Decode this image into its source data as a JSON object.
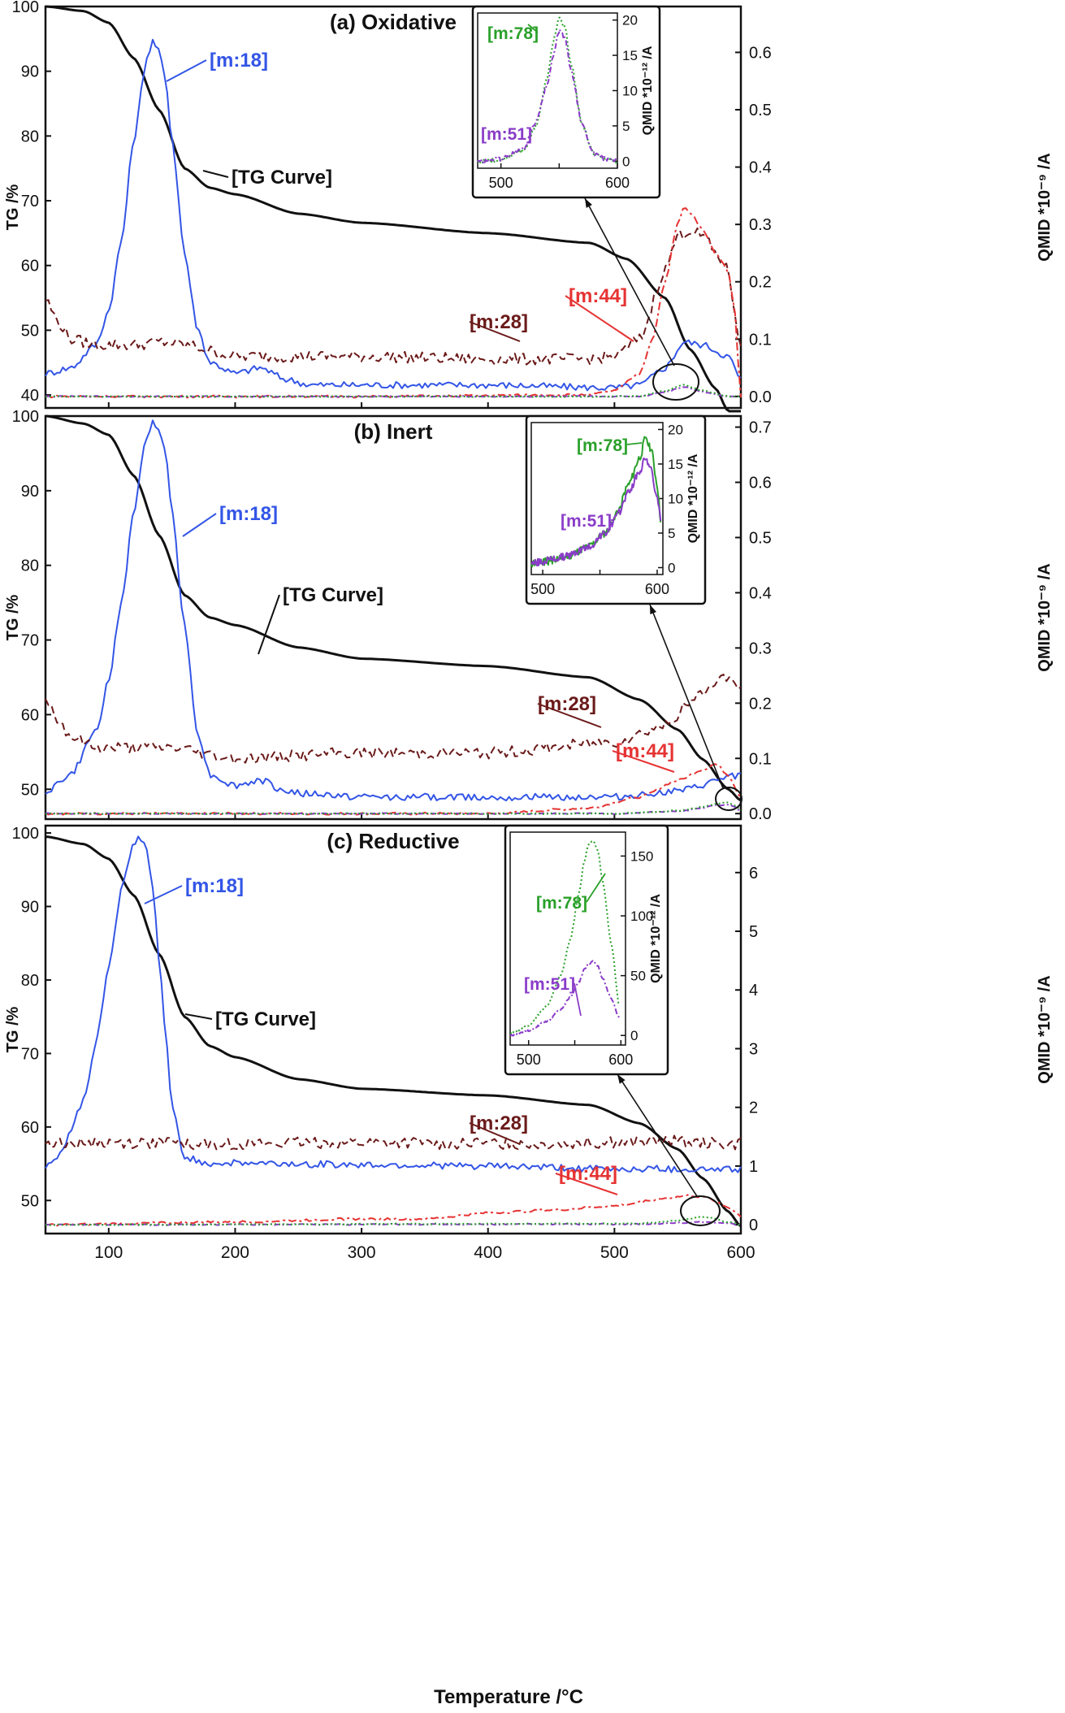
{
  "figure": {
    "xlabel": "Temperature /°C",
    "x_ticks": [
      100,
      200,
      300,
      400,
      500,
      600
    ],
    "xlim": [
      50,
      600
    ]
  },
  "chart_data": [
    {
      "type": "line",
      "title": "(a) Oxidative",
      "xlim": [
        50,
        600
      ],
      "ylabel_left": "TG /%",
      "ylabel_right": "QMID *10⁻⁹ /A",
      "ylim_left": [
        38,
        100
      ],
      "ylim_right": [
        -0.02,
        0.68
      ],
      "left_ticks": [
        40,
        50,
        60,
        70,
        80,
        90,
        100
      ],
      "right_ticks": [
        "0.0",
        "0.1",
        "0.2",
        "0.3",
        "0.4",
        "0.5",
        "0.6"
      ],
      "labels": [
        "[m:18]",
        "[TG Curve]",
        "[m:28]",
        "[m:44]"
      ],
      "colors": {
        "tg": "#111111",
        "m18": "#3355e6",
        "m28": "#6b1a1a",
        "m44": "#e63333",
        "m51": "#8a3cc8",
        "m78": "#2aa02a"
      },
      "series": [
        {
          "name": "[TG Curve]",
          "axis": "left",
          "x": [
            50,
            80,
            100,
            120,
            140,
            160,
            180,
            200,
            250,
            300,
            400,
            480,
            510,
            540,
            560,
            580,
            590,
            600
          ],
          "values": [
            100,
            99.3,
            97.5,
            92,
            84,
            75,
            72,
            71,
            68,
            66.6,
            65,
            63.5,
            61,
            55,
            47,
            41,
            37.5,
            37.5
          ]
        },
        {
          "name": "[m:18]",
          "axis": "right",
          "x": [
            50,
            70,
            90,
            100,
            110,
            120,
            130,
            135,
            140,
            145,
            150,
            160,
            170,
            180,
            200,
            220,
            240,
            260,
            300,
            400,
            500,
            520,
            540,
            555,
            570,
            590,
            600
          ],
          "values": [
            0.04,
            0.05,
            0.09,
            0.15,
            0.27,
            0.45,
            0.59,
            0.62,
            0.6,
            0.55,
            0.45,
            0.25,
            0.12,
            0.06,
            0.04,
            0.05,
            0.03,
            0.02,
            0.02,
            0.02,
            0.015,
            0.02,
            0.05,
            0.095,
            0.09,
            0.07,
            0.03
          ]
        },
        {
          "name": "[m:28]",
          "axis": "right",
          "x": [
            50,
            60,
            70,
            90,
            120,
            140,
            160,
            200,
            300,
            400,
            480,
            500,
            520,
            540,
            550,
            560,
            570,
            580,
            590,
            595,
            600
          ],
          "values": [
            0.17,
            0.13,
            0.1,
            0.09,
            0.09,
            0.095,
            0.09,
            0.07,
            0.07,
            0.065,
            0.065,
            0.07,
            0.1,
            0.22,
            0.28,
            0.29,
            0.28,
            0.25,
            0.22,
            0.15,
            0.08
          ]
        },
        {
          "name": "[m:44]",
          "axis": "right",
          "x": [
            50,
            300,
            480,
            500,
            520,
            530,
            540,
            550,
            555,
            560,
            570,
            580,
            590,
            595,
            600
          ],
          "values": [
            0.0,
            0.0,
            0.003,
            0.01,
            0.04,
            0.1,
            0.2,
            0.3,
            0.33,
            0.32,
            0.29,
            0.25,
            0.22,
            0.15,
            0.0
          ]
        },
        {
          "name": "[m:51]",
          "axis": "right",
          "x": [
            50,
            520,
            540,
            555,
            570,
            590,
            600
          ],
          "values": [
            0.0,
            0.0,
            0.008,
            0.017,
            0.008,
            0.0,
            0.0
          ]
        },
        {
          "name": "[m:78]",
          "axis": "right",
          "x": [
            50,
            520,
            540,
            555,
            570,
            590,
            600
          ],
          "values": [
            0.0,
            0.0,
            0.01,
            0.02,
            0.01,
            0.0,
            0.0
          ]
        }
      ],
      "inset": {
        "ylabel": "QMID *10⁻¹² /A",
        "xlim": [
          480,
          600
        ],
        "ylim": [
          -1,
          21
        ],
        "x_ticks": [
          500,
          550,
          600
        ],
        "x_tick_labels": [
          "500",
          "",
          "600"
        ],
        "y_ticks": [
          0,
          5,
          10,
          15,
          20
        ],
        "labels": [
          "[m:78]",
          "[m:51]"
        ],
        "series": [
          {
            "name": "[m:78]",
            "x": [
              480,
              500,
              520,
              530,
              540,
              545,
              550,
              555,
              560,
              570,
              580,
              590,
              600
            ],
            "values": [
              0,
              0.2,
              1.5,
              5,
              12,
              17,
              20.5,
              19,
              14,
              5,
              1,
              0.3,
              0
            ]
          },
          {
            "name": "[m:51]",
            "x": [
              480,
              500,
              520,
              530,
              540,
              545,
              550,
              555,
              560,
              570,
              580,
              590,
              600
            ],
            "values": [
              0,
              0.3,
              1.8,
              5.5,
              11,
              15,
              18.5,
              17.5,
              13,
              5,
              1,
              0.3,
              0
            ]
          }
        ]
      }
    },
    {
      "type": "line",
      "title": "(b) Inert",
      "xlim": [
        50,
        600
      ],
      "ylabel_left": "TG /%",
      "ylabel_right": "QMID *10⁻⁹ /A",
      "ylim_left": [
        46,
        100
      ],
      "ylim_right": [
        -0.01,
        0.72
      ],
      "left_ticks": [
        50,
        60,
        70,
        80,
        90,
        100
      ],
      "right_ticks": [
        "0.0",
        "0.1",
        "0.2",
        "0.3",
        "0.4",
        "0.5",
        "0.6",
        "0.7"
      ],
      "labels": [
        "[m:18]",
        "[TG Curve]",
        "[m:28]",
        "[m:44]"
      ],
      "colors": {
        "tg": "#111111",
        "m18": "#3355e6",
        "m28": "#6b1a1a",
        "m44": "#e63333",
        "m51": "#8a3cc8",
        "m78": "#2aa02a"
      },
      "series": [
        {
          "name": "[TG Curve]",
          "axis": "left",
          "x": [
            50,
            80,
            100,
            120,
            140,
            160,
            180,
            200,
            250,
            300,
            400,
            480,
            520,
            550,
            570,
            590,
            600
          ],
          "values": [
            100,
            99,
            97.5,
            92,
            84,
            76,
            73,
            72,
            69,
            67.5,
            66.5,
            65,
            62,
            58,
            54,
            50,
            48.5
          ]
        },
        {
          "name": "[m:18]",
          "axis": "right",
          "x": [
            50,
            70,
            90,
            100,
            110,
            120,
            130,
            135,
            140,
            145,
            150,
            160,
            170,
            180,
            200,
            220,
            240,
            260,
            300,
            400,
            500,
            550,
            600
          ],
          "values": [
            0.04,
            0.07,
            0.15,
            0.24,
            0.38,
            0.55,
            0.68,
            0.71,
            0.7,
            0.65,
            0.55,
            0.34,
            0.15,
            0.07,
            0.05,
            0.06,
            0.04,
            0.035,
            0.03,
            0.03,
            0.03,
            0.04,
            0.07
          ]
        },
        {
          "name": "[m:28]",
          "axis": "right",
          "x": [
            50,
            60,
            70,
            90,
            120,
            150,
            200,
            300,
            400,
            500,
            540,
            560,
            570,
            580,
            590,
            600
          ],
          "values": [
            0.21,
            0.17,
            0.14,
            0.12,
            0.12,
            0.12,
            0.1,
            0.11,
            0.11,
            0.13,
            0.16,
            0.2,
            0.22,
            0.24,
            0.25,
            0.22
          ]
        },
        {
          "name": "[m:44]",
          "axis": "right",
          "x": [
            50,
            400,
            480,
            520,
            550,
            570,
            580,
            590,
            600
          ],
          "values": [
            0.0,
            0.0,
            0.01,
            0.03,
            0.06,
            0.08,
            0.09,
            0.07,
            0.03
          ]
        },
        {
          "name": "[m:51]",
          "axis": "right",
          "x": [
            50,
            500,
            550,
            570,
            580,
            590,
            595,
            600
          ],
          "values": [
            0.0,
            0.0,
            0.004,
            0.01,
            0.015,
            0.016,
            0.012,
            0.005
          ]
        },
        {
          "name": "[m:78]",
          "axis": "right",
          "x": [
            50,
            500,
            550,
            570,
            580,
            590,
            595,
            600
          ],
          "values": [
            0.0,
            0.0,
            0.005,
            0.012,
            0.018,
            0.02,
            0.015,
            0.006
          ]
        }
      ],
      "inset": {
        "ylabel": "QMID *10⁻¹² /A",
        "xlim": [
          490,
          605
        ],
        "ylim": [
          -1,
          21
        ],
        "x_ticks": [
          500,
          550,
          600
        ],
        "x_tick_labels": [
          "500",
          "",
          "600"
        ],
        "y_ticks": [
          0,
          5,
          10,
          15,
          20
        ],
        "labels": [
          "[m:78]",
          "[m:51]"
        ],
        "series": [
          {
            "name": "[m:78]",
            "x": [
              490,
              500,
              520,
              540,
              555,
              565,
              575,
              585,
              590,
              595,
              600,
              603
            ],
            "values": [
              0.5,
              0.8,
              1.5,
              3,
              5,
              8,
              12,
              16,
              19,
              17,
              12,
              7
            ]
          },
          {
            "name": "[m:51]",
            "x": [
              490,
              500,
              520,
              540,
              555,
              565,
              575,
              585,
              590,
              595,
              600,
              603
            ],
            "values": [
              0.6,
              0.9,
              1.6,
              3,
              5,
              7.5,
              11,
              14,
              16,
              14,
              10,
              7
            ]
          }
        ]
      }
    },
    {
      "type": "line",
      "title": "(c) Reductive",
      "xlim": [
        50,
        600
      ],
      "ylabel_left": "TG /%",
      "ylabel_right": "QMID *10⁻⁹ /A",
      "ylim_left": [
        45.5,
        101
      ],
      "ylim_right": [
        -0.15,
        6.8
      ],
      "left_ticks": [
        50,
        60,
        70,
        80,
        90,
        100
      ],
      "right_ticks": [
        "0",
        "1",
        "2",
        "3",
        "4",
        "5",
        "6"
      ],
      "labels": [
        "[m:18]",
        "[TG Curve]",
        "[m:28]",
        "[m:44]"
      ],
      "colors": {
        "tg": "#111111",
        "m18": "#3355e6",
        "m28": "#6b1a1a",
        "m44": "#e63333",
        "m51": "#8a3cc8",
        "m78": "#2aa02a"
      },
      "series": [
        {
          "name": "[TG Curve]",
          "axis": "left",
          "x": [
            50,
            80,
            100,
            120,
            140,
            160,
            180,
            200,
            250,
            300,
            400,
            480,
            520,
            550,
            570,
            590,
            600
          ],
          "values": [
            99.5,
            98.5,
            96.5,
            91.5,
            83.5,
            75,
            71,
            69.5,
            66.5,
            65.2,
            64.3,
            63,
            60.5,
            57,
            53,
            48.5,
            46.5
          ]
        },
        {
          "name": "[m:18]",
          "axis": "right",
          "x": [
            50,
            60,
            80,
            90,
            100,
            110,
            120,
            125,
            130,
            135,
            140,
            145,
            150,
            160,
            180,
            200,
            300,
            400,
            500,
            600
          ],
          "values": [
            1.0,
            1.15,
            2.1,
            3.1,
            4.4,
            5.7,
            6.5,
            6.6,
            6.4,
            5.7,
            4.5,
            3.2,
            2.0,
            1.15,
            1.05,
            1.05,
            1.02,
            1.0,
            0.95,
            0.95
          ]
        },
        {
          "name": "[m:28]",
          "axis": "right",
          "x": [
            50,
            100,
            200,
            300,
            400,
            500,
            550,
            600
          ],
          "values": [
            1.4,
            1.4,
            1.38,
            1.4,
            1.38,
            1.4,
            1.42,
            1.38
          ]
        },
        {
          "name": "[m:44]",
          "axis": "right",
          "x": [
            50,
            200,
            300,
            350,
            400,
            450,
            500,
            540,
            560,
            575,
            590,
            600
          ],
          "values": [
            0.0,
            0.05,
            0.1,
            0.1,
            0.2,
            0.25,
            0.32,
            0.45,
            0.5,
            0.45,
            0.3,
            0.15
          ]
        },
        {
          "name": "[m:51]",
          "axis": "right",
          "x": [
            50,
            520,
            550,
            570,
            590,
            600
          ],
          "values": [
            0.0,
            0.01,
            0.03,
            0.05,
            0.02,
            0.0
          ]
        },
        {
          "name": "[m:78]",
          "axis": "right",
          "x": [
            50,
            520,
            550,
            570,
            590,
            600
          ],
          "values": [
            0.0,
            0.02,
            0.07,
            0.14,
            0.05,
            0.0
          ]
        }
      ],
      "inset": {
        "ylabel": "QMID *10⁻¹² /A",
        "xlim": [
          480,
          605
        ],
        "ylim": [
          -8,
          170
        ],
        "x_ticks": [
          500,
          550,
          600
        ],
        "x_tick_labels": [
          "500",
          "",
          "600"
        ],
        "y_ticks": [
          0,
          50,
          100,
          150
        ],
        "labels": [
          "[m:78]",
          "[m:51]"
        ],
        "series": [
          {
            "name": "[m:78]",
            "x": [
              480,
              500,
              520,
              535,
              545,
              555,
              560,
              565,
              570,
              575,
              580,
              590,
              598
            ],
            "values": [
              2,
              8,
              25,
              50,
              80,
              120,
              145,
              160,
              163,
              155,
              130,
              75,
              25
            ]
          },
          {
            "name": "[m:51]",
            "x": [
              480,
              500,
              520,
              535,
              545,
              555,
              560,
              565,
              570,
              575,
              580,
              590,
              598
            ],
            "values": [
              0,
              4,
              12,
              22,
              32,
              45,
              55,
              60,
              62,
              58,
              48,
              30,
              15
            ]
          }
        ]
      }
    }
  ]
}
